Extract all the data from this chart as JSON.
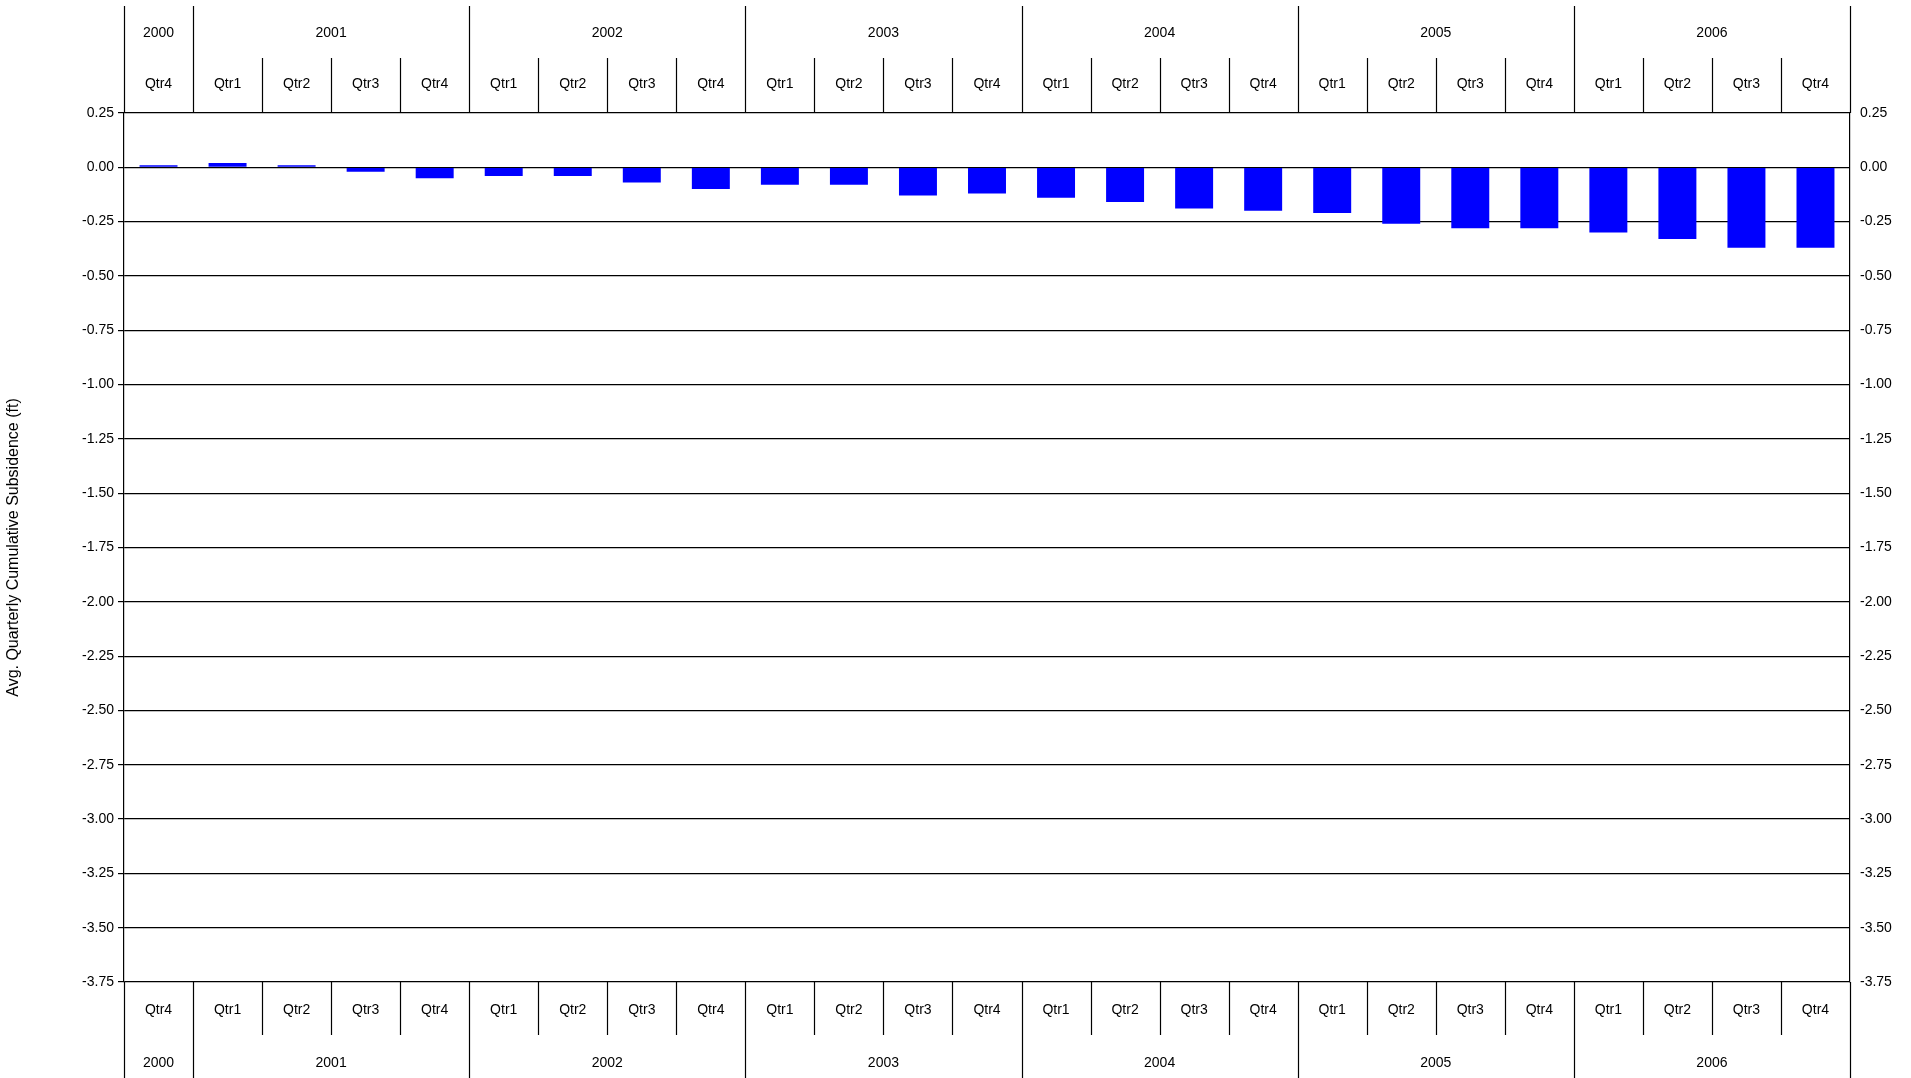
{
  "chart_data": {
    "type": "bar",
    "ylabel": "Avg. Quarterly Cumulative Subsidence (ft)",
    "categories": [
      "Qtr4",
      "Qtr1",
      "Qtr2",
      "Qtr3",
      "Qtr4",
      "Qtr1",
      "Qtr2",
      "Qtr3",
      "Qtr4",
      "Qtr1",
      "Qtr2",
      "Qtr3",
      "Qtr4",
      "Qtr1",
      "Qtr2",
      "Qtr3",
      "Qtr4",
      "Qtr1",
      "Qtr2",
      "Qtr3",
      "Qtr4",
      "Qtr1",
      "Qtr2",
      "Qtr3",
      "Qtr4"
    ],
    "values": [
      0.01,
      0.02,
      0.01,
      -0.02,
      -0.05,
      -0.04,
      -0.04,
      -0.07,
      -0.1,
      -0.08,
      -0.08,
      -0.13,
      -0.12,
      -0.14,
      -0.16,
      -0.19,
      -0.2,
      -0.21,
      -0.26,
      -0.28,
      -0.28,
      -0.3,
      -0.33,
      -0.37,
      -0.37
    ],
    "color": "#0000ff",
    "annotations": [
      "2000",
      "2001",
      "2002",
      "2003",
      "2004",
      "2005",
      "2006"
    ],
    "ylim": [
      -3.75,
      0.25
    ],
    "yticks": [
      {
        "value": 0.25,
        "label": "0.25"
      },
      {
        "value": 0,
        "label": "0.00"
      },
      {
        "value": -0.25,
        "label": "-0.25"
      },
      {
        "value": -0.5,
        "label": "-0.50"
      },
      {
        "value": -0.75,
        "label": "-0.75"
      },
      {
        "value": -1,
        "label": "-1.00"
      },
      {
        "value": -1.25,
        "label": "-1.25"
      },
      {
        "value": -1.5,
        "label": "-1.50"
      },
      {
        "value": -1.75,
        "label": "-1.75"
      },
      {
        "value": -2,
        "label": "-2.00"
      },
      {
        "value": -2.25,
        "label": "-2.25"
      },
      {
        "value": -2.5,
        "label": "-2.50"
      },
      {
        "value": -2.75,
        "label": "-2.75"
      },
      {
        "value": -3,
        "label": "-3.00"
      },
      {
        "value": -3.25,
        "label": "-3.25"
      },
      {
        "value": -3.5,
        "label": "-3.50"
      },
      {
        "value": -3.75,
        "label": "-3.75"
      }
    ],
    "y2lim": [
      -3.75,
      0.25
    ],
    "y2ticks": [
      {
        "value": 0.25,
        "label": "0.25"
      },
      {
        "value": 0,
        "label": "0.00"
      },
      {
        "value": -0.25,
        "label": "-0.25"
      },
      {
        "value": -0.5,
        "label": "-0.50"
      },
      {
        "value": -0.75,
        "label": "-0.75"
      },
      {
        "value": -1,
        "label": "-1.00"
      },
      {
        "value": -1.25,
        "label": "-1.25"
      },
      {
        "value": -1.5,
        "label": "-1.50"
      },
      {
        "value": -1.75,
        "label": "-1.75"
      },
      {
        "value": -2,
        "label": "-2.00"
      },
      {
        "value": -2.25,
        "label": "-2.25"
      },
      {
        "value": -2.5,
        "label": "-2.50"
      },
      {
        "value": -2.75,
        "label": "-2.75"
      },
      {
        "value": -3,
        "label": "-3.00"
      },
      {
        "value": -3.25,
        "label": "-3.25"
      },
      {
        "value": -3.5,
        "label": "-3.50"
      },
      {
        "value": -3.75,
        "label": "-3.75"
      }
    ],
    "grid": "y",
    "legend": false
  }
}
